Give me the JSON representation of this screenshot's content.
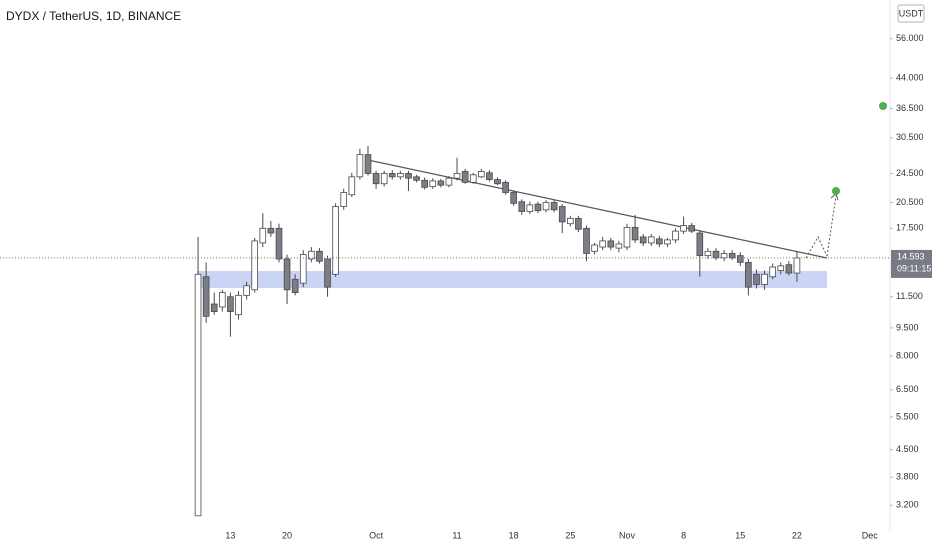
{
  "chart_data": {
    "type": "candlestick",
    "title": "DYDX / TetherUS, 1D, BINANCE",
    "currency": "USDT",
    "categories": [
      null,
      null,
      null,
      null,
      "13",
      null,
      null,
      null,
      null,
      null,
      null,
      "20",
      null,
      null,
      null,
      null,
      null,
      null,
      null,
      null,
      null,
      null,
      "Oct",
      null,
      null,
      null,
      null,
      null,
      null,
      null,
      null,
      null,
      "11",
      null,
      null,
      null,
      null,
      null,
      null,
      "18",
      null,
      null,
      null,
      null,
      null,
      null,
      "25",
      null,
      null,
      null,
      null,
      null,
      null,
      "Nov",
      null,
      null,
      null,
      null,
      null,
      null,
      "8",
      null,
      null,
      null,
      null,
      null,
      null,
      "15",
      null,
      null,
      null,
      null,
      null,
      null,
      "22",
      null,
      null,
      null,
      null,
      null,
      null,
      null,
      null,
      "Dec",
      null,
      null
    ],
    "open": [
      3.0,
      13.0,
      11.0,
      10.8,
      11.5,
      10.3,
      11.6,
      12.0,
      16.0,
      17.5,
      17.5,
      14.5,
      12.8,
      12.5,
      14.5,
      15.2,
      14.5,
      13.2,
      20.0,
      21.5,
      24.0,
      27.5,
      24.5,
      23.0,
      24.5,
      24.0,
      24.5,
      24.0,
      23.5,
      22.6,
      23.4,
      22.8,
      23.8,
      24.8,
      23.2,
      24.0,
      24.6,
      23.6,
      23.2,
      21.8,
      20.6,
      19.4,
      20.3,
      19.6,
      20.5,
      20.0,
      18.0,
      18.6,
      17.5,
      15.2,
      15.6,
      16.2,
      15.5,
      15.6,
      17.6,
      16.6,
      16.0,
      16.4,
      15.9,
      16.3,
      17.2,
      17.8,
      17.0,
      14.8,
      15.2,
      14.6,
      15.0,
      14.8,
      14.2,
      13.2,
      12.4,
      13.0,
      13.5,
      14.0,
      13.3,
      null,
      null,
      null,
      null,
      null,
      null,
      null,
      null,
      null,
      null,
      null
    ],
    "high": [
      16.6,
      14.2,
      11.8,
      12.0,
      11.8,
      11.9,
      12.6,
      16.5,
      19.2,
      18.3,
      18.0,
      14.9,
      13.2,
      15.3,
      15.6,
      15.5,
      14.8,
      20.4,
      22.3,
      24.6,
      28.5,
      29.0,
      24.9,
      24.9,
      25.0,
      24.9,
      24.9,
      24.3,
      23.9,
      23.8,
      23.7,
      24.1,
      27.0,
      25.2,
      24.6,
      25.2,
      25.0,
      23.9,
      23.5,
      22.1,
      20.9,
      20.6,
      20.6,
      20.8,
      20.8,
      20.3,
      18.9,
      18.9,
      17.8,
      16.0,
      16.6,
      16.5,
      16.2,
      18.0,
      19.0,
      16.9,
      16.9,
      16.7,
      16.5,
      17.5,
      18.8,
      18.1,
      17.3,
      15.5,
      15.5,
      15.3,
      15.3,
      15.1,
      14.5,
      13.6,
      13.5,
      14.1,
      14.2,
      14.3,
      15.2,
      null,
      null,
      null,
      null,
      null,
      null,
      null,
      null,
      null,
      null,
      null
    ],
    "low": [
      3.0,
      9.8,
      10.3,
      10.5,
      9.0,
      10.0,
      11.3,
      11.8,
      15.6,
      16.6,
      14.2,
      11.0,
      11.6,
      12.2,
      14.2,
      14.1,
      11.5,
      13.0,
      19.6,
      21.2,
      23.6,
      24.2,
      22.3,
      22.6,
      23.6,
      23.6,
      22.0,
      23.2,
      22.2,
      22.3,
      22.5,
      22.5,
      23.5,
      23.0,
      23.0,
      23.8,
      23.3,
      22.8,
      21.5,
      20.1,
      19.0,
      19.1,
      19.2,
      19.3,
      19.3,
      17.0,
      17.7,
      17.1,
      14.3,
      14.9,
      15.3,
      15.3,
      15.1,
      15.3,
      16.0,
      15.7,
      15.7,
      15.6,
      15.6,
      16.0,
      16.9,
      17.0,
      13.0,
      14.5,
      14.4,
      14.3,
      14.4,
      13.9,
      11.6,
      12.1,
      12.0,
      12.8,
      13.2,
      13.1,
      12.6,
      null,
      null,
      null,
      null,
      null,
      null,
      null,
      null,
      null,
      null,
      null
    ],
    "close": [
      13.2,
      10.2,
      10.5,
      11.8,
      10.5,
      11.6,
      12.3,
      16.2,
      17.5,
      17.0,
      14.5,
      12.0,
      11.8,
      14.9,
      15.2,
      14.3,
      12.2,
      20.0,
      21.8,
      24.0,
      27.5,
      24.5,
      23.0,
      24.5,
      24.0,
      24.5,
      23.8,
      23.5,
      22.5,
      23.4,
      22.8,
      23.8,
      24.5,
      23.2,
      24.3,
      24.8,
      23.6,
      23.0,
      21.8,
      20.4,
      19.4,
      20.2,
      19.5,
      20.5,
      19.6,
      18.2,
      18.6,
      17.4,
      15.0,
      15.8,
      16.2,
      15.6,
      15.9,
      17.6,
      16.3,
      16.0,
      16.6,
      15.9,
      16.3,
      17.2,
      17.8,
      17.2,
      14.8,
      15.2,
      14.6,
      15.0,
      14.6,
      14.2,
      12.2,
      12.4,
      13.2,
      13.8,
      13.9,
      13.3,
      14.593,
      null,
      null,
      null,
      null,
      null,
      null,
      null,
      null,
      null,
      null,
      null
    ],
    "up_color": "#ffffff",
    "down_color": "#7b7e87",
    "border_color": "#4a4a4a",
    "log": true,
    "grid": false,
    "ylim": [
      2.75,
      71
    ],
    "yticks": [
      {
        "value": 56,
        "label": "56.000"
      },
      {
        "value": 44,
        "label": "44.000"
      },
      {
        "value": 36.5,
        "label": "36.500"
      },
      {
        "value": 30.5,
        "label": "30.500"
      },
      {
        "value": 24.5,
        "label": "24.500"
      },
      {
        "value": 20.5,
        "label": "20.500"
      },
      {
        "value": 17.5,
        "label": "17.500"
      },
      {
        "value": 11.5,
        "label": "11.500"
      },
      {
        "value": 9.5,
        "label": "9.500"
      },
      {
        "value": 8,
        "label": "8.000"
      },
      {
        "value": 6.5,
        "label": "6.500"
      },
      {
        "value": 5.5,
        "label": "5.500"
      },
      {
        "value": 4.5,
        "label": "4.500"
      },
      {
        "value": 3.8,
        "label": "3.800"
      },
      {
        "value": 3.2,
        "label": "3.200"
      }
    ],
    "last_price": 14.593,
    "countdown": "09:11:15"
  }
}
